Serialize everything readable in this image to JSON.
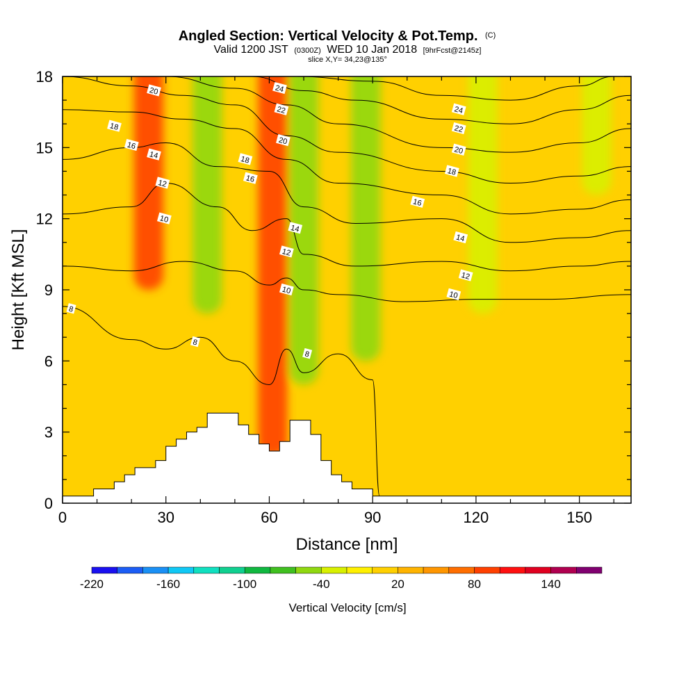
{
  "title": {
    "main": "Angled Section: Vertical Velocity & Pot.Temp.",
    "main_suffix": "(C)",
    "valid_prefix": "Valid 1200 JST",
    "valid_utc": "(0300Z)",
    "valid_date": "WED 10 Jan 2018",
    "forecast": "[9hrFcst@2145z]",
    "slice": "slice X,Y= 34,23@135°"
  },
  "chart_data": {
    "type": "heatmap",
    "xlabel": "Distance [nm]",
    "ylabel": "Height [Kft MSL]",
    "xlim": [
      0,
      165
    ],
    "ylim": [
      0,
      18
    ],
    "x_ticks": [
      0,
      30,
      60,
      90,
      120,
      150
    ],
    "y_ticks": [
      0,
      3,
      6,
      9,
      12,
      15,
      18
    ],
    "colorbar": {
      "label": "Vertical Velocity [cm/s]",
      "min": -220,
      "max": 180,
      "step": 20,
      "tick_labels": [
        -220,
        -160,
        -100,
        -40,
        20,
        80,
        140
      ],
      "colors": [
        "#1a10f0",
        "#1c5df5",
        "#1a90f5",
        "#10c8f5",
        "#10e0c0",
        "#10d090",
        "#10b840",
        "#40c020",
        "#90d810",
        "#d8f000",
        "#fff000",
        "#ffd000",
        "#ffb400",
        "#ff9600",
        "#ff6e00",
        "#ff4000",
        "#ff1010",
        "#e00020",
        "#b00050",
        "#800070"
      ]
    },
    "velocity_columns": [
      {
        "x": 25,
        "ymin": 9,
        "ymax": 18,
        "value": 90
      },
      {
        "x": 42,
        "ymin": 8,
        "ymax": 18,
        "value": -60
      },
      {
        "x": 61,
        "ymin": 2,
        "ymax": 18,
        "value": 90
      },
      {
        "x": 70,
        "ymin": 5,
        "ymax": 18,
        "value": -50
      },
      {
        "x": 88,
        "ymin": 6,
        "ymax": 18,
        "value": -50
      },
      {
        "x": 122,
        "ymin": 8,
        "ymax": 18,
        "value": -40
      },
      {
        "x": 155,
        "ymin": 13,
        "ymax": 18,
        "value": -40
      }
    ],
    "terrain": [
      [
        0,
        0.3
      ],
      [
        9,
        0.3
      ],
      [
        9,
        0.6
      ],
      [
        15,
        0.6
      ],
      [
        15,
        0.9
      ],
      [
        18,
        0.9
      ],
      [
        18,
        1.2
      ],
      [
        21,
        1.2
      ],
      [
        21,
        1.5
      ],
      [
        27,
        1.5
      ],
      [
        27,
        1.8
      ],
      [
        30,
        1.8
      ],
      [
        30,
        2.4
      ],
      [
        33,
        2.4
      ],
      [
        33,
        2.7
      ],
      [
        36,
        2.7
      ],
      [
        36,
        3.0
      ],
      [
        39,
        3.0
      ],
      [
        39,
        3.2
      ],
      [
        42,
        3.2
      ],
      [
        42,
        3.8
      ],
      [
        51,
        3.8
      ],
      [
        51,
        3.3
      ],
      [
        54,
        3.3
      ],
      [
        54,
        2.9
      ],
      [
        57,
        2.9
      ],
      [
        57,
        2.5
      ],
      [
        60,
        2.5
      ],
      [
        60,
        2.2
      ],
      [
        63,
        2.2
      ],
      [
        63,
        2.6
      ],
      [
        66,
        2.6
      ],
      [
        66,
        3.5
      ],
      [
        72,
        3.5
      ],
      [
        72,
        2.9
      ],
      [
        75,
        2.9
      ],
      [
        75,
        1.8
      ],
      [
        78,
        1.8
      ],
      [
        78,
        1.2
      ],
      [
        81,
        1.2
      ],
      [
        81,
        0.9
      ],
      [
        84,
        0.9
      ],
      [
        84,
        0.6
      ],
      [
        90,
        0.6
      ],
      [
        90,
        0.3
      ],
      [
        165,
        0.3
      ]
    ],
    "theta_contours": [
      {
        "label": "8",
        "points": [
          [
            0,
            8.3
          ],
          [
            20,
            6.9
          ],
          [
            30,
            6.5
          ],
          [
            40,
            7.0
          ],
          [
            50,
            6.0
          ],
          [
            60,
            5.0
          ],
          [
            65,
            6.5
          ],
          [
            70,
            5.5
          ],
          [
            80,
            6.3
          ],
          [
            90,
            5.2
          ],
          [
            92,
            0.3
          ]
        ]
      },
      {
        "label": "10",
        "points": [
          [
            0,
            10.0
          ],
          [
            20,
            9.8
          ],
          [
            35,
            10.2
          ],
          [
            50,
            9.8
          ],
          [
            60,
            9.2
          ],
          [
            65,
            9.5
          ],
          [
            70,
            9.0
          ],
          [
            80,
            8.8
          ],
          [
            100,
            8.5
          ],
          [
            120,
            8.6
          ],
          [
            140,
            8.6
          ],
          [
            165,
            8.8
          ]
        ]
      },
      {
        "label": "12",
        "points": [
          [
            0,
            12.2
          ],
          [
            20,
            12.5
          ],
          [
            30,
            13.5
          ],
          [
            45,
            12.5
          ],
          [
            55,
            11.5
          ],
          [
            65,
            12.0
          ],
          [
            70,
            10.5
          ],
          [
            85,
            10.0
          ],
          [
            110,
            10.2
          ],
          [
            130,
            9.8
          ],
          [
            150,
            10.0
          ],
          [
            165,
            10.2
          ]
        ]
      },
      {
        "label": "14",
        "points": [
          [
            0,
            14.5
          ],
          [
            20,
            15.0
          ],
          [
            30,
            15.2
          ],
          [
            45,
            14.2
          ],
          [
            60,
            14.0
          ],
          [
            70,
            12.5
          ],
          [
            85,
            11.8
          ],
          [
            110,
            12.0
          ],
          [
            130,
            11.0
          ],
          [
            150,
            11.2
          ],
          [
            165,
            11.5
          ]
        ]
      },
      {
        "label": "16",
        "points": [
          [
            0,
            16.6
          ],
          [
            20,
            16.5
          ],
          [
            35,
            16.2
          ],
          [
            50,
            15.8
          ],
          [
            65,
            14.5
          ],
          [
            80,
            13.5
          ],
          [
            110,
            13.0
          ],
          [
            130,
            12.2
          ],
          [
            150,
            12.4
          ],
          [
            165,
            12.8
          ]
        ]
      },
      {
        "label": "18",
        "points": [
          [
            0,
            18.0
          ],
          [
            20,
            17.6
          ],
          [
            35,
            17.2
          ],
          [
            50,
            16.8
          ],
          [
            65,
            15.5
          ],
          [
            80,
            14.8
          ],
          [
            110,
            14.0
          ],
          [
            130,
            13.5
          ],
          [
            150,
            13.8
          ],
          [
            165,
            14.2
          ]
        ]
      },
      {
        "label": "20",
        "points": [
          [
            30,
            18.0
          ],
          [
            50,
            17.5
          ],
          [
            65,
            16.8
          ],
          [
            80,
            16.0
          ],
          [
            110,
            15.0
          ],
          [
            130,
            14.8
          ],
          [
            150,
            15.2
          ],
          [
            165,
            15.8
          ]
        ]
      },
      {
        "label": "22",
        "points": [
          [
            55,
            18.0
          ],
          [
            70,
            17.4
          ],
          [
            85,
            17.0
          ],
          [
            110,
            16.2
          ],
          [
            130,
            16.0
          ],
          [
            150,
            16.6
          ],
          [
            165,
            17.2
          ]
        ]
      },
      {
        "label": "24",
        "points": [
          [
            68,
            18.0
          ],
          [
            90,
            17.8
          ],
          [
            110,
            17.2
          ],
          [
            130,
            17.0
          ],
          [
            150,
            17.6
          ],
          [
            160,
            18.0
          ]
        ]
      }
    ],
    "contour_labels": [
      {
        "text": "20",
        "x": 26.5,
        "y": 17.4
      },
      {
        "text": "18",
        "x": 15,
        "y": 15.9
      },
      {
        "text": "16",
        "x": 20,
        "y": 15.1
      },
      {
        "text": "14",
        "x": 26.5,
        "y": 14.7
      },
      {
        "text": "12",
        "x": 29,
        "y": 13.5
      },
      {
        "text": "10",
        "x": 29.5,
        "y": 12.0
      },
      {
        "text": "8",
        "x": 2.5,
        "y": 8.2
      },
      {
        "text": "8",
        "x": 38.5,
        "y": 6.8
      },
      {
        "text": "18",
        "x": 53,
        "y": 14.5
      },
      {
        "text": "16",
        "x": 54.5,
        "y": 13.7
      },
      {
        "text": "24",
        "x": 63,
        "y": 17.5
      },
      {
        "text": "22",
        "x": 63.5,
        "y": 16.6
      },
      {
        "text": "20",
        "x": 64,
        "y": 15.3
      },
      {
        "text": "14",
        "x": 67.5,
        "y": 11.6
      },
      {
        "text": "12",
        "x": 65,
        "y": 10.6
      },
      {
        "text": "10",
        "x": 65,
        "y": 9.0
      },
      {
        "text": "8",
        "x": 71,
        "y": 6.3
      },
      {
        "text": "24",
        "x": 115,
        "y": 16.6
      },
      {
        "text": "22",
        "x": 115,
        "y": 15.8
      },
      {
        "text": "20",
        "x": 115,
        "y": 14.9
      },
      {
        "text": "18",
        "x": 113,
        "y": 14.0
      },
      {
        "text": "16",
        "x": 103,
        "y": 12.7
      },
      {
        "text": "14",
        "x": 115.5,
        "y": 11.2
      },
      {
        "text": "12",
        "x": 117,
        "y": 9.6
      },
      {
        "text": "10",
        "x": 113.5,
        "y": 8.8
      }
    ]
  }
}
